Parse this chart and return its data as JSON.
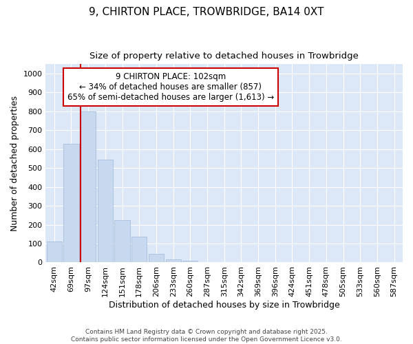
{
  "title": "9, CHIRTON PLACE, TROWBRIDGE, BA14 0XT",
  "subtitle": "Size of property relative to detached houses in Trowbridge",
  "xlabel": "Distribution of detached houses by size in Trowbridge",
  "ylabel": "Number of detached properties",
  "bins": [
    "42sqm",
    "69sqm",
    "97sqm",
    "124sqm",
    "151sqm",
    "178sqm",
    "206sqm",
    "233sqm",
    "260sqm",
    "287sqm",
    "315sqm",
    "342sqm",
    "369sqm",
    "396sqm",
    "424sqm",
    "451sqm",
    "478sqm",
    "505sqm",
    "533sqm",
    "560sqm",
    "587sqm"
  ],
  "values": [
    110,
    630,
    800,
    545,
    225,
    135,
    45,
    15,
    10,
    0,
    0,
    0,
    0,
    0,
    0,
    0,
    0,
    0,
    0,
    0,
    0
  ],
  "bar_color": "#c8d8ee",
  "bar_edge_color": "#a0b8d8",
  "vline_x_index": 2,
  "vline_color": "#cc0000",
  "annotation_text": "9 CHIRTON PLACE: 102sqm\n← 34% of detached houses are smaller (857)\n65% of semi-detached houses are larger (1,613) →",
  "annotation_box_color": "#cc0000",
  "ylim": [
    0,
    1050
  ],
  "yticks": [
    0,
    100,
    200,
    300,
    400,
    500,
    600,
    700,
    800,
    900,
    1000
  ],
  "fig_bg_color": "#ffffff",
  "plot_bg_color": "#dce8f8",
  "grid_color": "#ffffff",
  "title_fontsize": 11,
  "subtitle_fontsize": 9.5,
  "axis_label_fontsize": 9,
  "tick_fontsize": 8,
  "footer_text": "Contains HM Land Registry data © Crown copyright and database right 2025.\nContains public sector information licensed under the Open Government Licence v3.0."
}
